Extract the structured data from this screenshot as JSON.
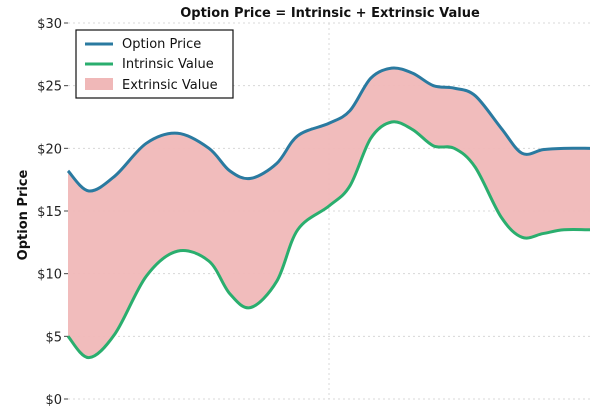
{
  "chart_data": {
    "type": "area",
    "title": "Option Price = Intrinsic + Extrinsic Value",
    "xlabel": "",
    "ylabel": "Option Price",
    "ylim": [
      0,
      30
    ],
    "yticks": [
      0,
      5,
      10,
      15,
      20,
      25,
      30
    ],
    "ytick_labels": [
      "$0",
      "$5",
      "$10",
      "$15",
      "$20",
      "$25",
      "$30"
    ],
    "xlim": [
      0,
      1
    ],
    "grid": true,
    "legend_position": "top-left",
    "x": [
      0,
      0.04,
      0.09,
      0.15,
      0.21,
      0.27,
      0.31,
      0.35,
      0.4,
      0.44,
      0.5,
      0.54,
      0.58,
      0.62,
      0.66,
      0.7,
      0.74,
      0.78,
      0.83,
      0.87,
      0.91,
      0.95,
      1.0
    ],
    "series": [
      {
        "name": "Option Price",
        "color": "#2a7aa0",
        "values": [
          18.2,
          16.6,
          17.8,
          20.4,
          21.2,
          20.0,
          18.2,
          17.6,
          18.8,
          21.0,
          22.0,
          23.0,
          25.6,
          26.4,
          26.0,
          25.0,
          24.8,
          24.2,
          21.6,
          19.6,
          19.9,
          20.0,
          20.0
        ]
      },
      {
        "name": "Intrinsic Value",
        "color": "#2aae6e",
        "values": [
          5.0,
          3.3,
          5.2,
          9.8,
          11.8,
          11.0,
          8.4,
          7.3,
          9.4,
          13.5,
          15.4,
          17.0,
          20.8,
          22.1,
          21.5,
          20.2,
          20.0,
          18.5,
          14.5,
          12.9,
          13.2,
          13.5,
          13.5
        ]
      },
      {
        "name": "Extrinsic Value",
        "color": "#f0b8b8",
        "kind": "fill_between"
      }
    ]
  }
}
